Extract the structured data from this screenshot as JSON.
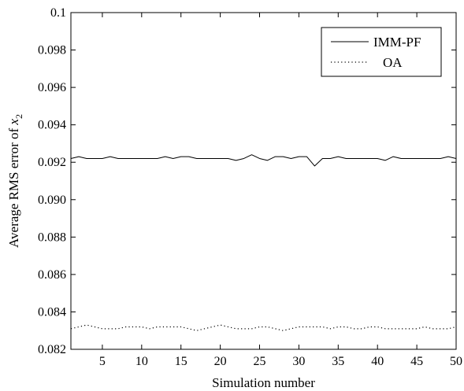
{
  "chart_data": {
    "type": "line",
    "title": "",
    "xlabel": "Simulation number",
    "ylabel": {
      "prefix": "Average RMS error of ",
      "var": "x",
      "sub": "2"
    },
    "xlim": [
      1,
      50
    ],
    "ylim": [
      0.082,
      0.1
    ],
    "xticks": [
      5,
      10,
      15,
      20,
      25,
      30,
      35,
      40,
      45,
      50
    ],
    "yticks": [
      0.082,
      0.084,
      0.086,
      0.088,
      0.09,
      0.092,
      0.094,
      0.096,
      0.098,
      0.1
    ],
    "ytick_labels": [
      "0.082",
      "0.084",
      "0.086",
      "0.088",
      "0.090",
      "0.092",
      "0.094",
      "0.096",
      "0.098",
      "0.1"
    ],
    "grid": false,
    "legend_position": "top-right",
    "x": [
      1,
      2,
      3,
      4,
      5,
      6,
      7,
      8,
      9,
      10,
      11,
      12,
      13,
      14,
      15,
      16,
      17,
      18,
      19,
      20,
      21,
      22,
      23,
      24,
      25,
      26,
      27,
      28,
      29,
      30,
      31,
      32,
      33,
      34,
      35,
      36,
      37,
      38,
      39,
      40,
      41,
      42,
      43,
      44,
      45,
      46,
      47,
      48,
      49,
      50
    ],
    "series": [
      {
        "name": "IMM-PF",
        "style": "solid",
        "values": [
          0.0922,
          0.0923,
          0.0922,
          0.0922,
          0.0922,
          0.0923,
          0.0922,
          0.0922,
          0.0922,
          0.0922,
          0.0922,
          0.0922,
          0.0923,
          0.0922,
          0.0923,
          0.0923,
          0.0922,
          0.0922,
          0.0922,
          0.0922,
          0.0922,
          0.0921,
          0.0922,
          0.0924,
          0.0922,
          0.0921,
          0.0923,
          0.0923,
          0.0922,
          0.0923,
          0.0923,
          0.0918,
          0.0922,
          0.0922,
          0.0923,
          0.0922,
          0.0922,
          0.0922,
          0.0922,
          0.0922,
          0.0921,
          0.0923,
          0.0922,
          0.0922,
          0.0922,
          0.0922,
          0.0922,
          0.0922,
          0.0923,
          0.0922
        ]
      },
      {
        "name": "OA",
        "style": "dotted",
        "values": [
          0.0831,
          0.0832,
          0.0833,
          0.0832,
          0.0831,
          0.0831,
          0.0831,
          0.0832,
          0.0832,
          0.0832,
          0.0831,
          0.0832,
          0.0832,
          0.0832,
          0.0832,
          0.0831,
          0.083,
          0.0831,
          0.0832,
          0.0833,
          0.0832,
          0.0831,
          0.0831,
          0.0831,
          0.0832,
          0.0832,
          0.0831,
          0.083,
          0.0831,
          0.0832,
          0.0832,
          0.0832,
          0.0832,
          0.0831,
          0.0832,
          0.0832,
          0.0831,
          0.0831,
          0.0832,
          0.0832,
          0.0831,
          0.0831,
          0.0831,
          0.0831,
          0.0831,
          0.0832,
          0.0831,
          0.0831,
          0.0831,
          0.0832
        ]
      }
    ]
  }
}
